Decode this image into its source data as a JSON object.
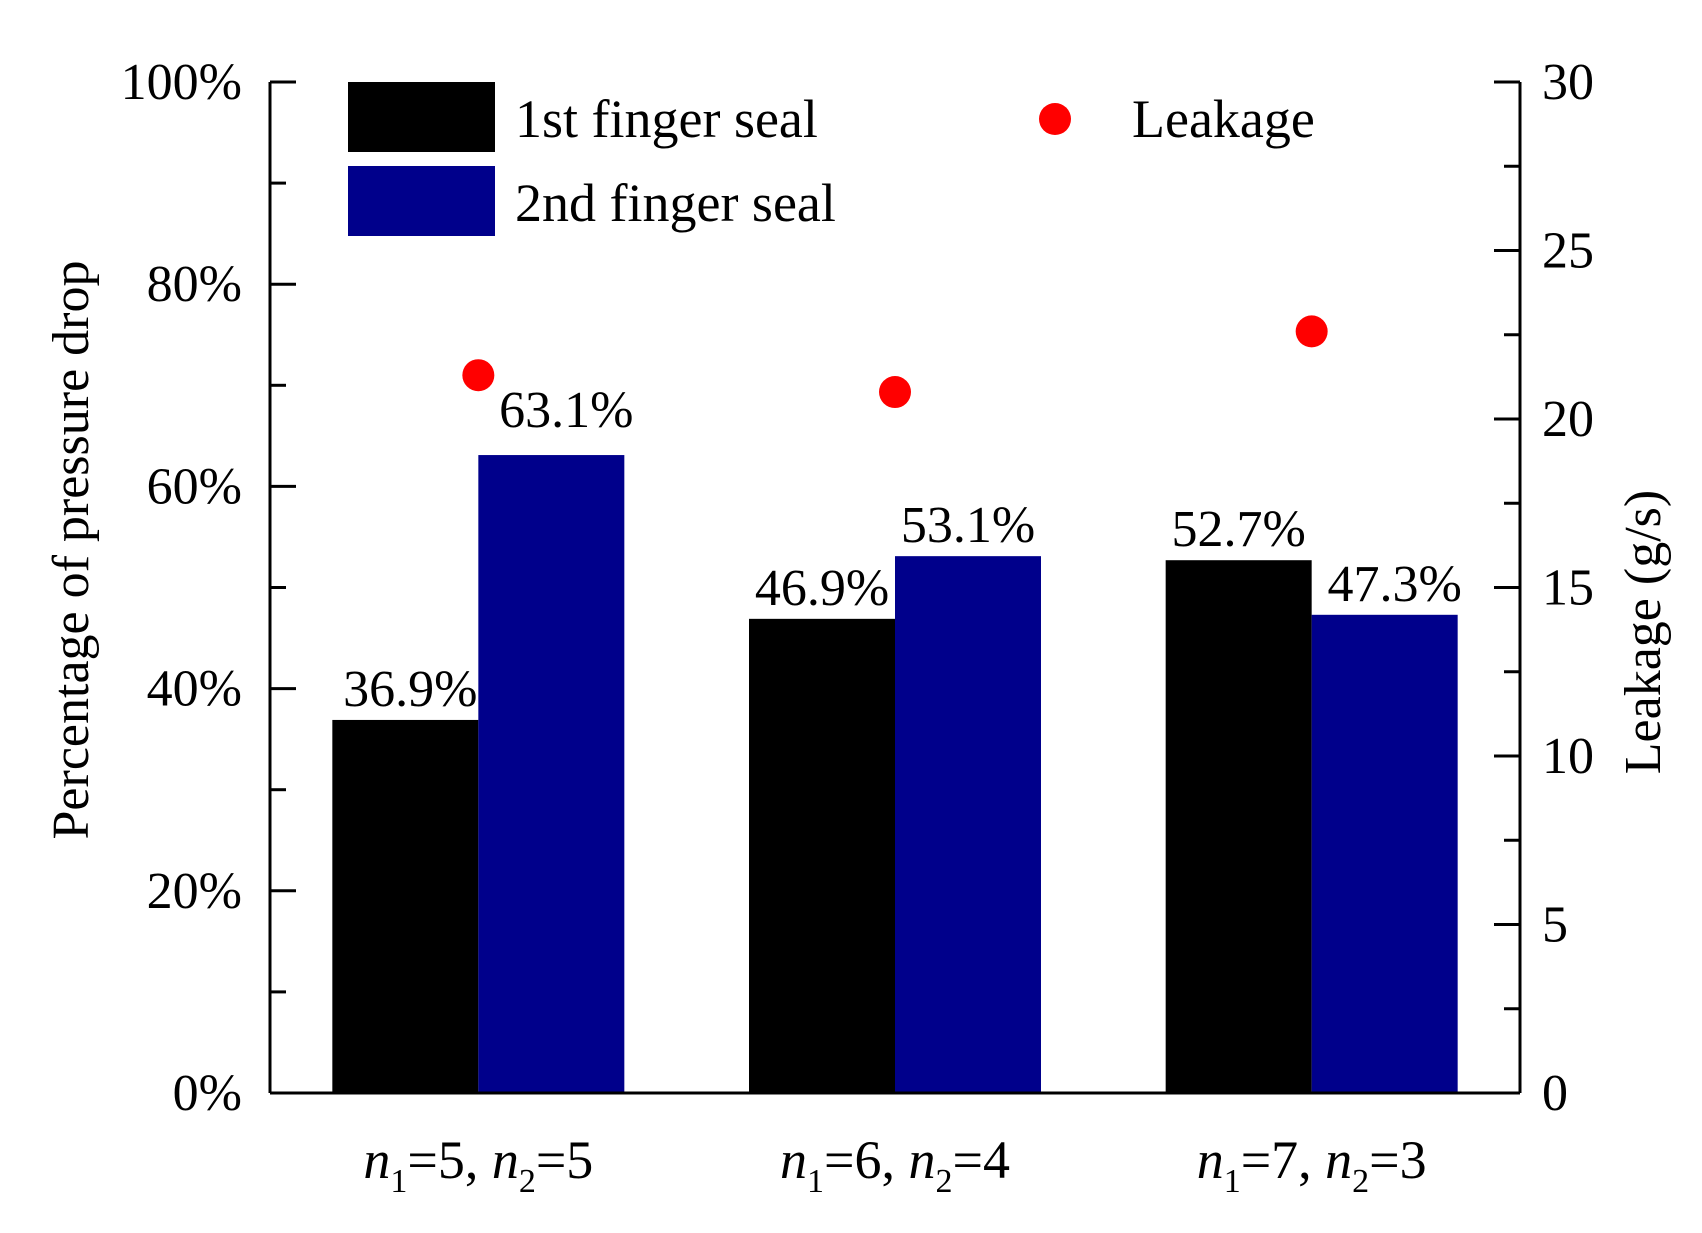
{
  "chart_data": {
    "type": "bar",
    "categories": [
      {
        "n1_var": "n",
        "n1_sub": "1",
        "n1_val": "=5, ",
        "n2_var": "n",
        "n2_sub": "2",
        "n2_val": "=5"
      },
      {
        "n1_var": "n",
        "n1_sub": "1",
        "n1_val": "=6, ",
        "n2_var": "n",
        "n2_sub": "2",
        "n2_val": "=4"
      },
      {
        "n1_var": "n",
        "n1_sub": "1",
        "n1_val": "=7, ",
        "n2_var": "n",
        "n2_sub": "2",
        "n2_val": "=3"
      }
    ],
    "category_labels": [
      "n1=5, n2=5",
      "n1=6, n2=4",
      "n1=7, n2=3"
    ],
    "series": [
      {
        "name": "1st finger seal",
        "color": "#000000",
        "values": [
          36.9,
          46.9,
          52.7
        ],
        "labels": [
          "36.9%",
          "46.9%",
          "52.7%"
        ]
      },
      {
        "name": "2nd finger seal",
        "color": "#00008b",
        "values": [
          63.1,
          53.1,
          47.3
        ],
        "labels": [
          "63.1%",
          "53.1%",
          "47.3%"
        ]
      }
    ],
    "leakage": {
      "name": "Leakage",
      "color": "#ff0000",
      "values": [
        21.3,
        20.8,
        22.6
      ]
    },
    "ylabel": "Percentage of pressure drop",
    "ylabel_right": "Leakage (g/s)",
    "ylim": [
      0,
      100
    ],
    "ylim_right": [
      0,
      30
    ],
    "yticks_left": [
      "0%",
      "20%",
      "40%",
      "60%",
      "80%",
      "100%"
    ],
    "yticks_right": [
      "0",
      "5",
      "10",
      "15",
      "20",
      "25",
      "30"
    ],
    "grid": false,
    "legend_position": "top"
  }
}
